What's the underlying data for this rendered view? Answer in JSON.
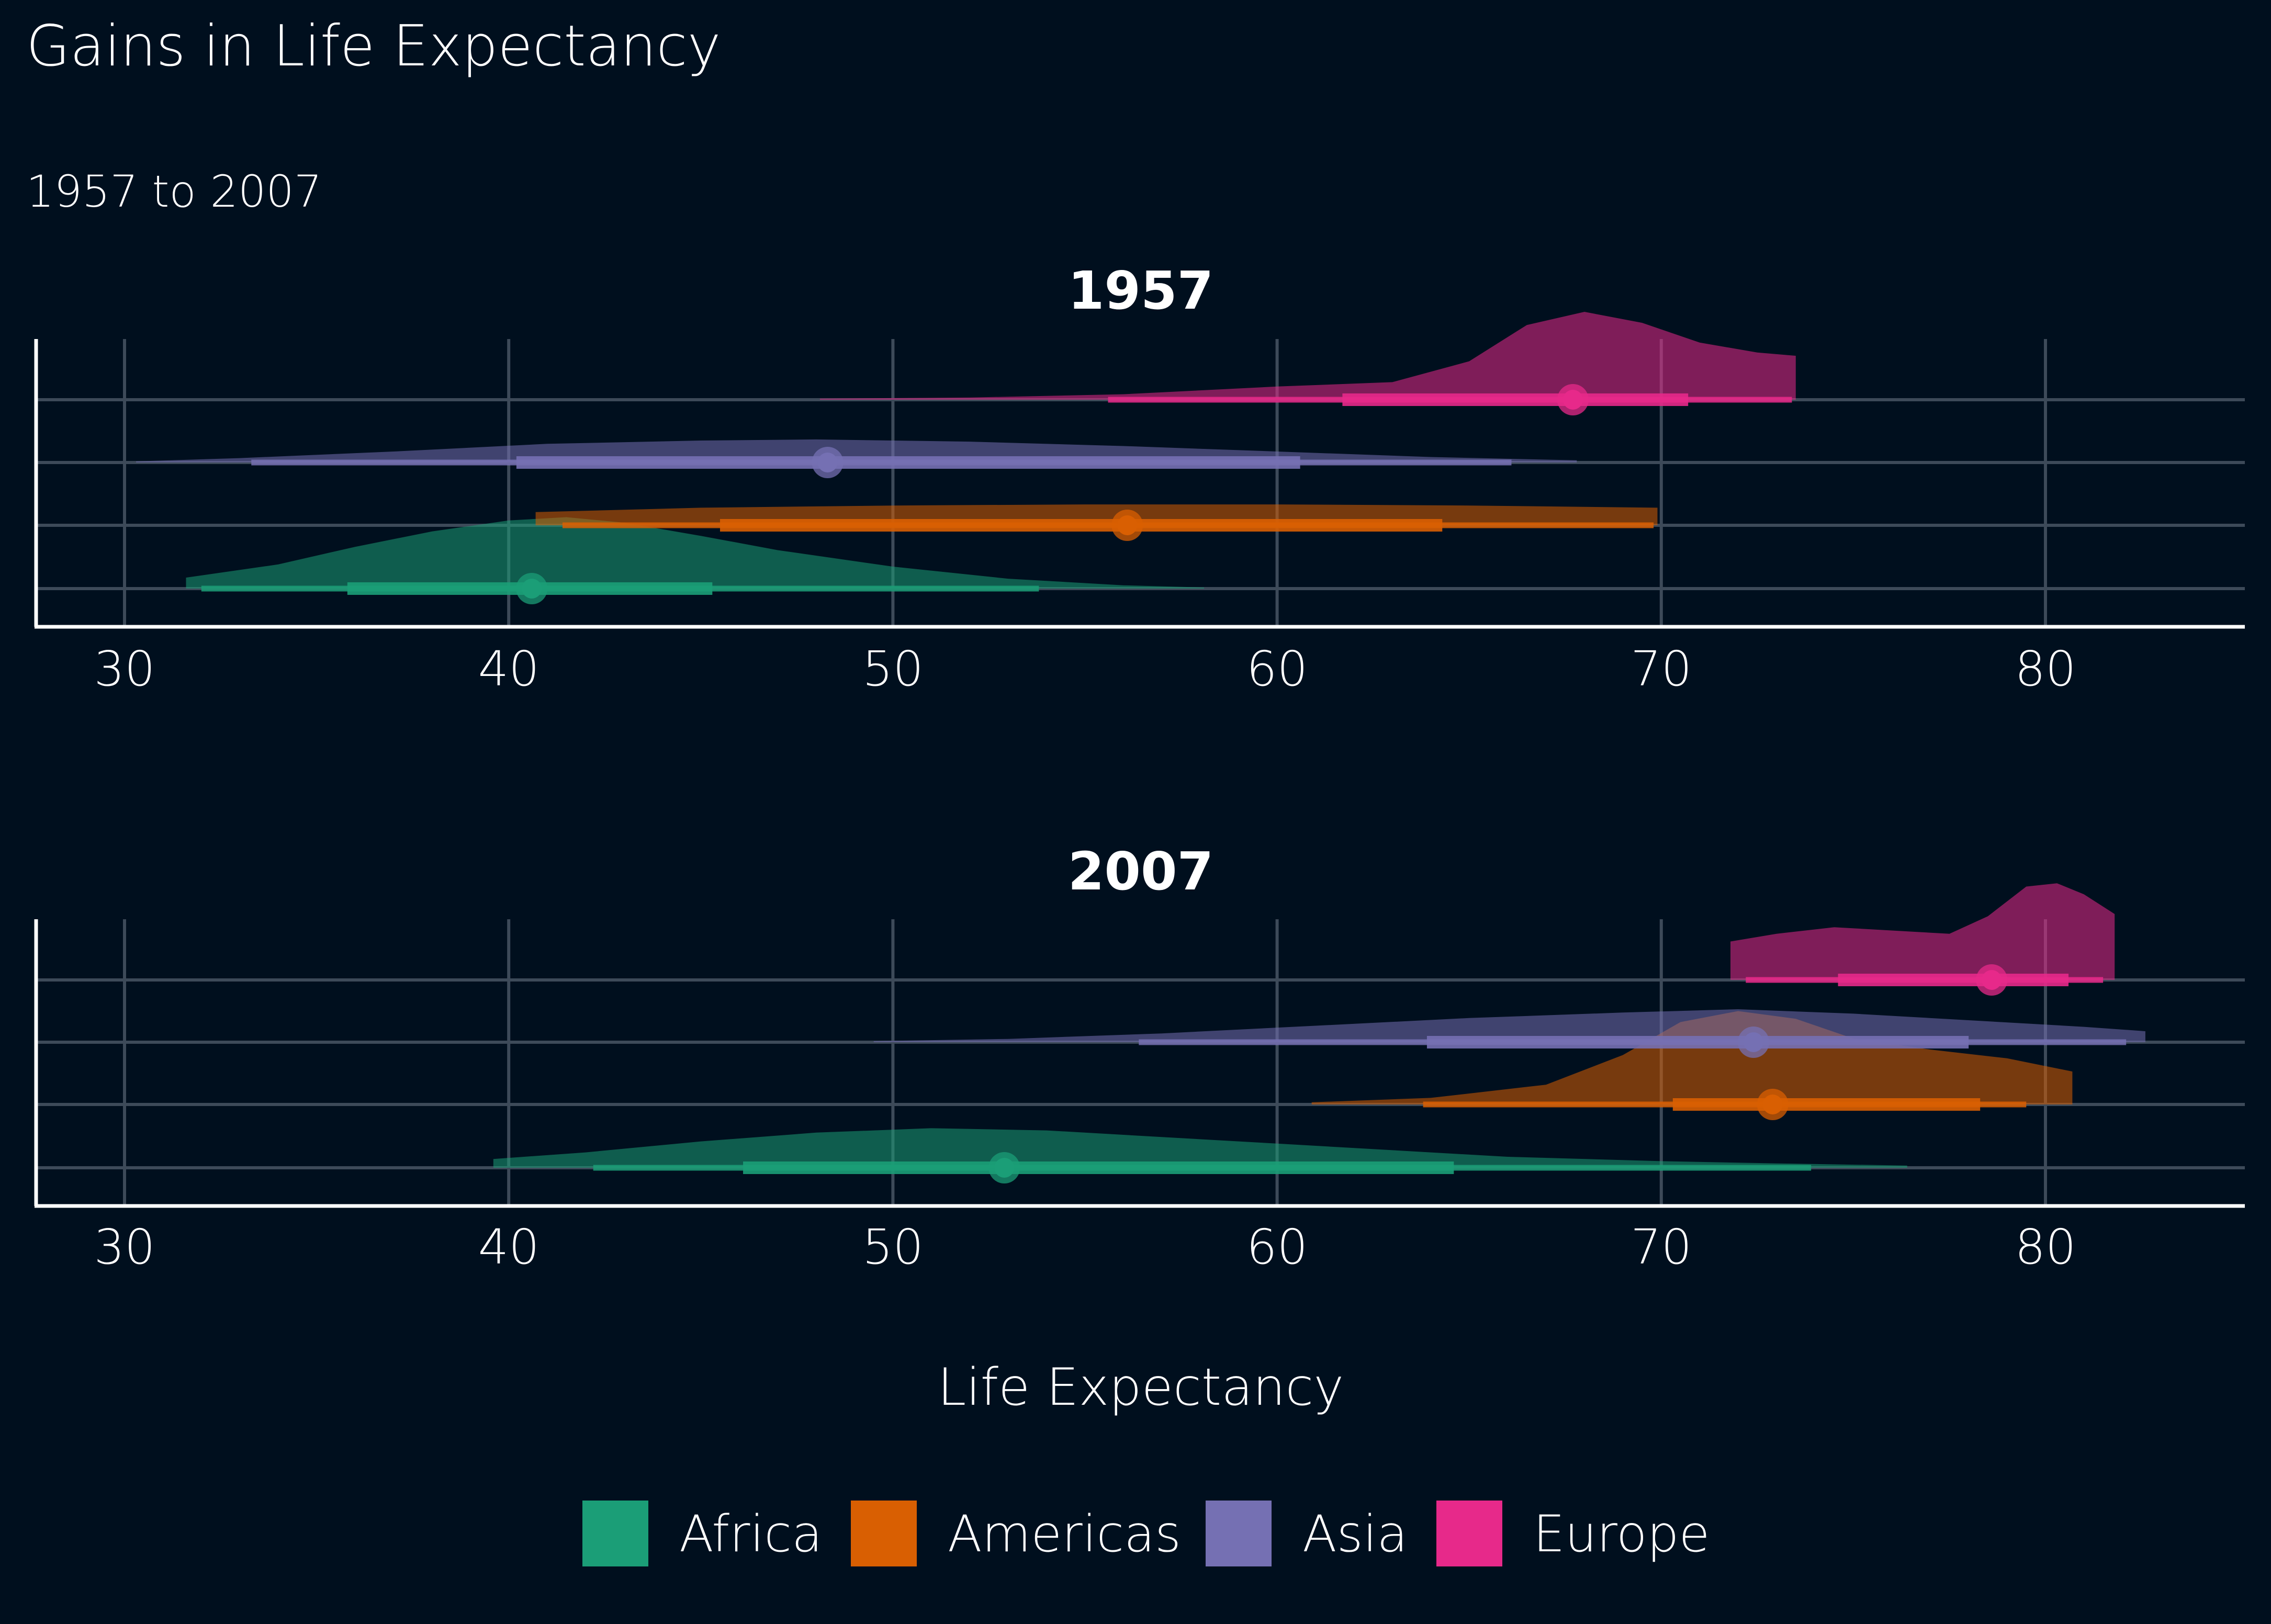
{
  "chart_data": {
    "type": "halfeye",
    "title": "Gains in Life Expectancy",
    "subtitle": "1957 to 2007",
    "xlabel": "Life Expectancy",
    "ylabel": "",
    "xlim": [
      27.7,
      85.3
    ],
    "x_ticks": [
      30,
      40,
      50,
      60,
      70,
      80
    ],
    "grid": true,
    "legend_position": "bottom",
    "category_order": [
      "Africa",
      "Americas",
      "Asia",
      "Europe"
    ],
    "colors": {
      "Africa": "#1b9e77",
      "Americas": "#d95f02",
      "Asia": "#7570b3",
      "Europe": "#e7298a"
    },
    "panels": [
      {
        "label": "1957",
        "series": [
          {
            "name": "Africa",
            "median": 40.6,
            "interval_66": [
              35.8,
              45.3
            ],
            "interval_95": [
              32.0,
              53.8
            ],
            "min": 31.6,
            "max": 58.1,
            "density": [
              [
                31.6,
                0.1
              ],
              [
                34,
                0.22
              ],
              [
                36,
                0.38
              ],
              [
                38,
                0.52
              ],
              [
                40,
                0.62
              ],
              [
                41.5,
                0.65
              ],
              [
                43,
                0.6
              ],
              [
                45,
                0.48
              ],
              [
                47,
                0.35
              ],
              [
                50,
                0.2
              ],
              [
                53,
                0.09
              ],
              [
                56,
                0.03
              ],
              [
                58.1,
                0.01
              ]
            ]
          },
          {
            "name": "Americas",
            "median": 56.1,
            "interval_66": [
              45.5,
              64.3
            ],
            "interval_95": [
              41.4,
              69.8
            ],
            "min": 40.7,
            "max": 69.9,
            "density": [
              [
                40.7,
                0.12
              ],
              [
                45,
                0.16
              ],
              [
                50,
                0.18
              ],
              [
                55,
                0.19
              ],
              [
                60,
                0.19
              ],
              [
                65,
                0.18
              ],
              [
                69.9,
                0.16
              ]
            ]
          },
          {
            "name": "Asia",
            "median": 48.3,
            "interval_66": [
              40.2,
              60.6
            ],
            "interval_95": [
              33.3,
              66.1
            ],
            "min": 30.3,
            "max": 67.8,
            "density": [
              [
                30.3,
                0.01
              ],
              [
                33,
                0.04
              ],
              [
                37,
                0.1
              ],
              [
                41,
                0.17
              ],
              [
                45,
                0.2
              ],
              [
                48,
                0.21
              ],
              [
                52,
                0.19
              ],
              [
                56,
                0.15
              ],
              [
                60,
                0.1
              ],
              [
                64,
                0.05
              ],
              [
                67.8,
                0.02
              ]
            ]
          },
          {
            "name": "Europe",
            "median": 67.7,
            "interval_66": [
              61.7,
              70.7
            ],
            "interval_95": [
              55.6,
              73.4
            ],
            "min": 48.1,
            "max": 73.5,
            "density": [
              [
                48.1,
                0.01
              ],
              [
                52,
                0.02
              ],
              [
                56,
                0.05
              ],
              [
                60,
                0.12
              ],
              [
                63,
                0.16
              ],
              [
                65,
                0.35
              ],
              [
                66.5,
                0.68
              ],
              [
                68,
                0.8
              ],
              [
                69.5,
                0.7
              ],
              [
                71,
                0.52
              ],
              [
                72.5,
                0.43
              ],
              [
                73.5,
                0.4
              ]
            ]
          }
        ]
      },
      {
        "label": "2007",
        "series": [
          {
            "name": "Africa",
            "median": 52.9,
            "interval_66": [
              46.1,
              64.6
            ],
            "interval_95": [
              42.2,
              73.9
            ],
            "min": 39.6,
            "max": 76.4,
            "density": [
              [
                39.6,
                0.08
              ],
              [
                42,
                0.14
              ],
              [
                45,
                0.24
              ],
              [
                48,
                0.32
              ],
              [
                51,
                0.36
              ],
              [
                54,
                0.34
              ],
              [
                57,
                0.28
              ],
              [
                60,
                0.22
              ],
              [
                63,
                0.16
              ],
              [
                66,
                0.1
              ],
              [
                70,
                0.06
              ],
              [
                73,
                0.04
              ],
              [
                76.4,
                0.02
              ]
            ]
          },
          {
            "name": "Americas",
            "median": 72.9,
            "interval_66": [
              70.3,
              78.3
            ],
            "interval_95": [
              63.8,
              79.5
            ],
            "min": 60.9,
            "max": 80.7,
            "density": [
              [
                60.9,
                0.02
              ],
              [
                64,
                0.06
              ],
              [
                67,
                0.18
              ],
              [
                69,
                0.45
              ],
              [
                70.5,
                0.75
              ],
              [
                72,
                0.85
              ],
              [
                73.5,
                0.78
              ],
              [
                75,
                0.6
              ],
              [
                77,
                0.5
              ],
              [
                79,
                0.42
              ],
              [
                80.7,
                0.3
              ]
            ]
          },
          {
            "name": "Asia",
            "median": 72.4,
            "interval_66": [
              63.9,
              78.0
            ],
            "interval_95": [
              56.4,
              82.1
            ],
            "min": 49.5,
            "max": 82.6,
            "density": [
              [
                49.5,
                0.01
              ],
              [
                53,
                0.03
              ],
              [
                57,
                0.08
              ],
              [
                61,
                0.15
              ],
              [
                65,
                0.22
              ],
              [
                69,
                0.27
              ],
              [
                72,
                0.3
              ],
              [
                75,
                0.26
              ],
              [
                78,
                0.2
              ],
              [
                81,
                0.14
              ],
              [
                82.6,
                0.1
              ]
            ]
          },
          {
            "name": "Europe",
            "median": 78.6,
            "interval_66": [
              74.6,
              80.6
            ],
            "interval_95": [
              72.2,
              81.5
            ],
            "min": 71.8,
            "max": 81.8,
            "density": [
              [
                71.8,
                0.35
              ],
              [
                73,
                0.42
              ],
              [
                74.5,
                0.48
              ],
              [
                76,
                0.45
              ],
              [
                77.5,
                0.42
              ],
              [
                78.5,
                0.58
              ],
              [
                79.5,
                0.85
              ],
              [
                80.3,
                0.88
              ],
              [
                81,
                0.78
              ],
              [
                81.8,
                0.6
              ]
            ]
          }
        ]
      }
    ]
  }
}
